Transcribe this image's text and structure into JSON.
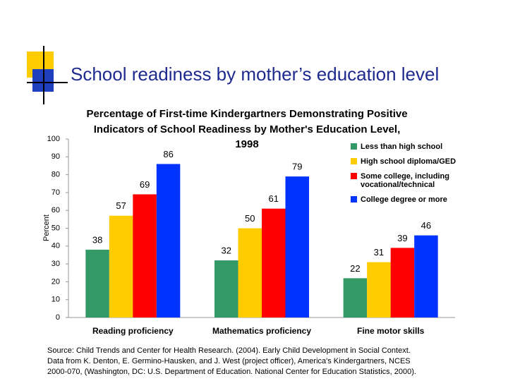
{
  "slide_title": "School readiness by mother’s education level",
  "chart_data": {
    "type": "bar",
    "title_lines": [
      "Percentage of First-time Kindergartners Demonstrating Positive",
      "Indicators of School Readiness by Mother's Education Level,",
      "1998"
    ],
    "y_label": "Percent",
    "categories": [
      "Reading proficiency",
      "Mathematics proficiency",
      "Fine motor skills"
    ],
    "series": [
      {
        "name": "Less than high school",
        "color": "#339966",
        "values": [
          38,
          32,
          22
        ]
      },
      {
        "name": "High school diploma/GED",
        "color": "#ffcc00",
        "values": [
          57,
          50,
          31
        ]
      },
      {
        "name": "Some college, including vocational/technical",
        "color": "#ff0000",
        "values": [
          69,
          61,
          39
        ]
      },
      {
        "name": "College degree or more",
        "color": "#0033ff",
        "values": [
          86,
          79,
          46
        ]
      }
    ],
    "ylim": [
      0,
      100
    ],
    "yticks": [
      0,
      10,
      20,
      30,
      40,
      50,
      60,
      70,
      80,
      90,
      100
    ],
    "grid": false,
    "legend": "right"
  },
  "source_lines": [
    "Source: Child Trends and Center for Health Research. (2004). Early Child Development in Social Context.",
    "Data from K. Denton, E. Germino-Hausken, and J. West (project officer), America's Kindergartners, NCES",
    "2000-070, (Washington, DC: U.S. Department of Education. National Center for Education Statistics, 2000)."
  ]
}
